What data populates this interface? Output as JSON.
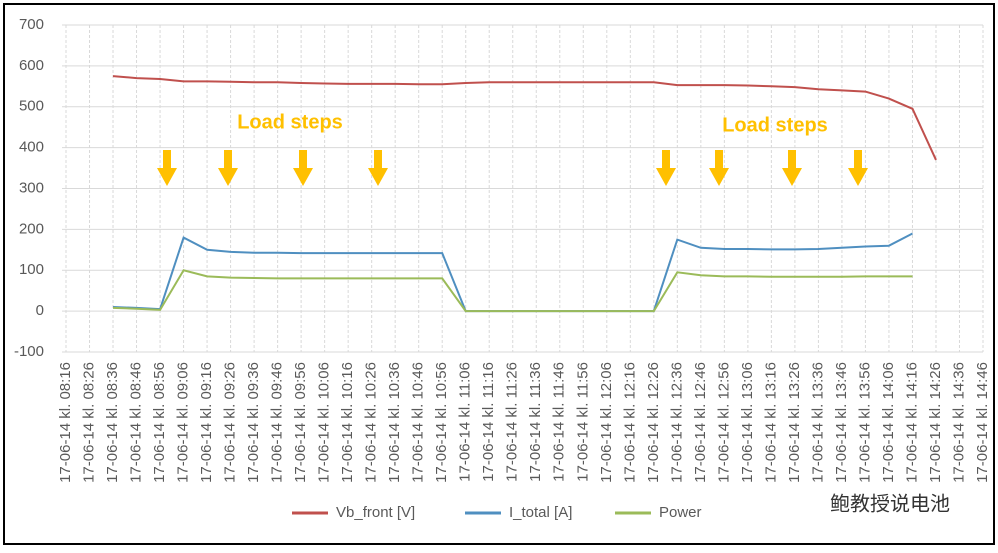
{
  "chart_data": {
    "type": "line",
    "categories": [
      "17-06-14 kl. 08:16",
      "17-06-14 kl. 08:26",
      "17-06-14 kl. 08:36",
      "17-06-14 kl. 08:46",
      "17-06-14 kl. 08:56",
      "17-06-14 kl. 09:06",
      "17-06-14 kl. 09:16",
      "17-06-14 kl. 09:26",
      "17-06-14 kl. 09:36",
      "17-06-14 kl. 09:46",
      "17-06-14 kl. 09:56",
      "17-06-14 kl. 10:06",
      "17-06-14 kl. 10:16",
      "17-06-14 kl. 10:26",
      "17-06-14 kl. 10:36",
      "17-06-14 kl. 10:46",
      "17-06-14 kl. 10:56",
      "17-06-14 kl. 11:06",
      "17-06-14 kl. 11:16",
      "17-06-14 kl. 11:26",
      "17-06-14 kl. 11:36",
      "17-06-14 kl. 11:46",
      "17-06-14 kl. 11:56",
      "17-06-14 kl. 12:06",
      "17-06-14 kl. 12:16",
      "17-06-14 kl. 12:26",
      "17-06-14 kl. 12:36",
      "17-06-14 kl. 12:46",
      "17-06-14 kl. 12:56",
      "17-06-14 kl. 13:06",
      "17-06-14 kl. 13:16",
      "17-06-14 kl. 13:26",
      "17-06-14 kl. 13:36",
      "17-06-14 kl. 13:46",
      "17-06-14 kl. 13:56",
      "17-06-14 kl. 14:06",
      "17-06-14 kl. 14:16",
      "17-06-14 kl. 14:26",
      "17-06-14 kl. 14:36",
      "17-06-14 kl. 14:46"
    ],
    "series": [
      {
        "name": "Vb_front [V]",
        "color": "#c0504d",
        "values": [
          null,
          null,
          575,
          570,
          568,
          562,
          562,
          561,
          560,
          560,
          558,
          557,
          556,
          556,
          556,
          555,
          555,
          558,
          560,
          560,
          560,
          560,
          560,
          560,
          560,
          560,
          553,
          553,
          553,
          552,
          550,
          548,
          543,
          540,
          537,
          520,
          495,
          370,
          null,
          null
        ]
      },
      {
        "name": "I_total [A]",
        "color": "#4f8fc0",
        "values": [
          null,
          null,
          10,
          8,
          5,
          180,
          150,
          145,
          143,
          143,
          142,
          142,
          142,
          142,
          142,
          142,
          142,
          0,
          0,
          0,
          0,
          0,
          0,
          0,
          0,
          0,
          175,
          155,
          152,
          152,
          151,
          151,
          152,
          155,
          158,
          160,
          190,
          null,
          null,
          null
        ]
      },
      {
        "name": "Power",
        "color": "#9bbb59",
        "values": [
          null,
          null,
          8,
          6,
          3,
          100,
          85,
          82,
          81,
          80,
          80,
          80,
          80,
          80,
          80,
          80,
          80,
          0,
          0,
          0,
          0,
          0,
          0,
          0,
          0,
          0,
          95,
          88,
          85,
          85,
          84,
          84,
          84,
          84,
          85,
          85,
          85,
          null,
          null,
          null
        ]
      }
    ],
    "ylim": [
      -100,
      700
    ],
    "yticks": [
      -100,
      0,
      100,
      200,
      300,
      400,
      500,
      600,
      700
    ],
    "grid": true,
    "annotations": [
      "Load steps",
      "Load steps"
    ],
    "watermark": "鲍教授说电池",
    "legend": "bottom"
  }
}
